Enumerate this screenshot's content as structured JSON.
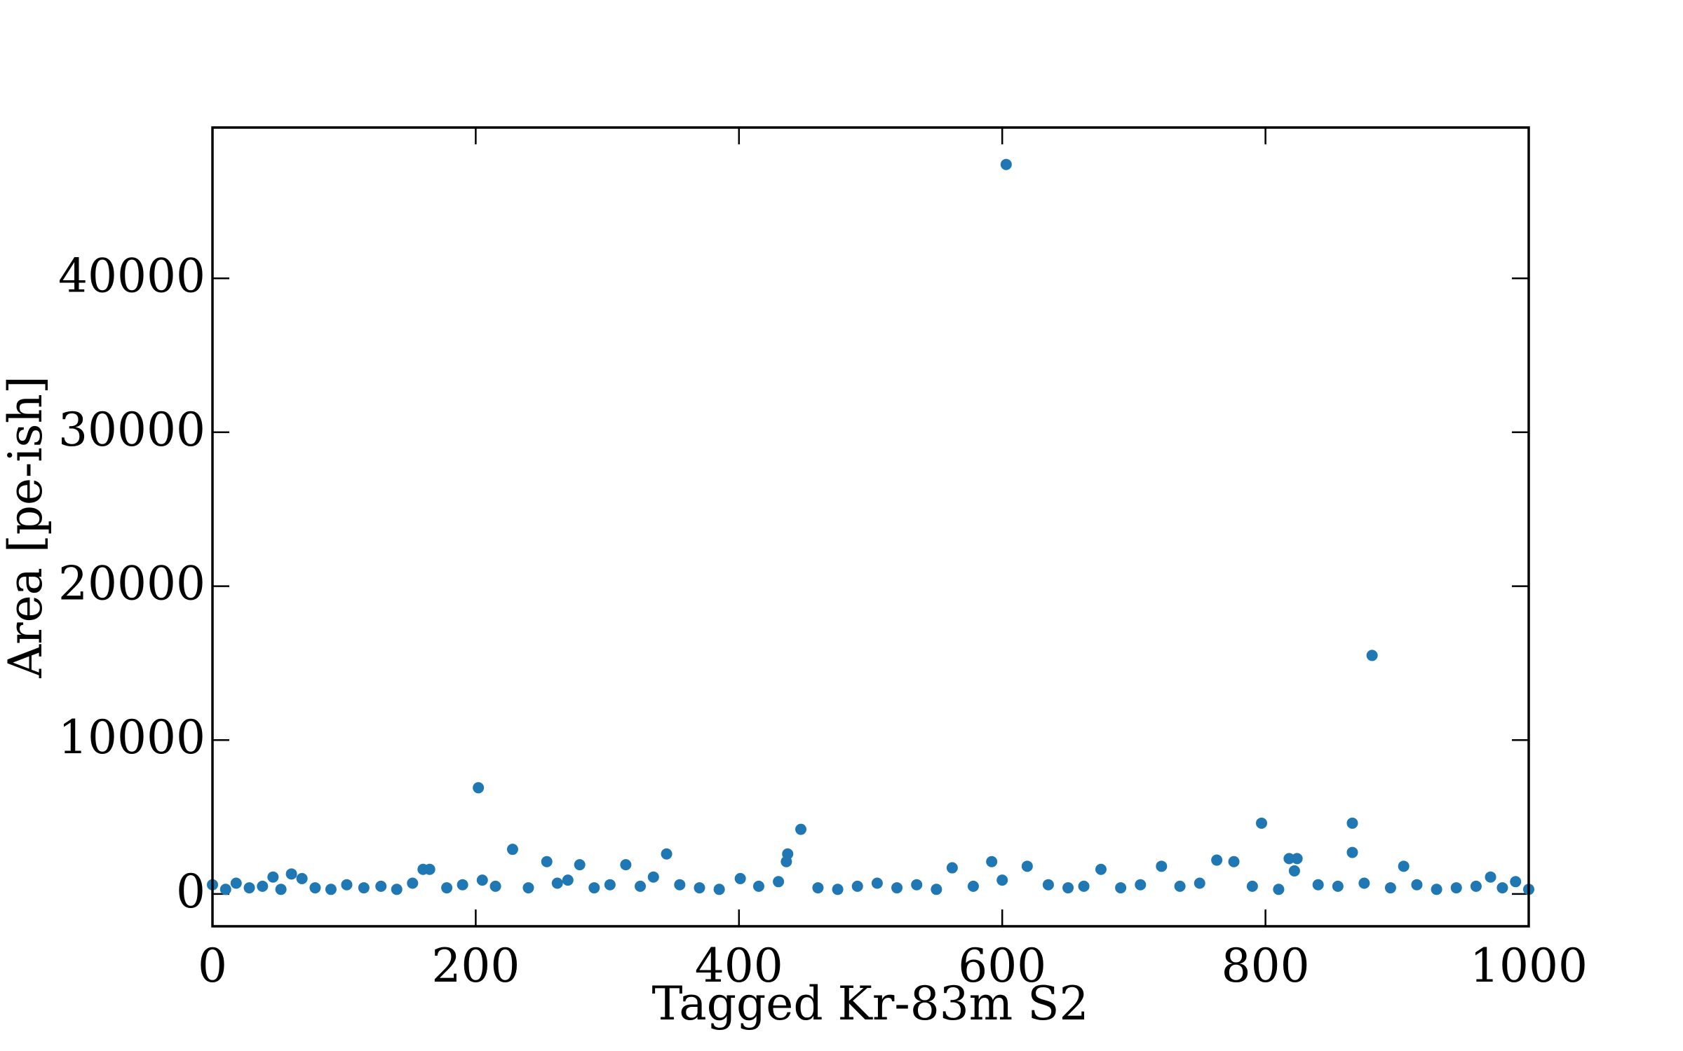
{
  "chart_data": {
    "type": "scatter",
    "xlabel": "Tagged Kr-83m S2",
    "ylabel": "Area [pe-ish]",
    "color": "#1f77b4",
    "xlim": [
      0,
      1000
    ],
    "xticks": [
      0,
      200,
      400,
      600,
      800,
      1000
    ],
    "ylim": [
      -2100,
      49800
    ],
    "yticks": [
      0,
      10000,
      20000,
      30000,
      40000
    ],
    "x": [
      0,
      10,
      18,
      28,
      38,
      46,
      52,
      60,
      68,
      78,
      90,
      102,
      115,
      128,
      140,
      152,
      160,
      165,
      178,
      190,
      202,
      205,
      215,
      228,
      240,
      254,
      262,
      270,
      279,
      290,
      302,
      314,
      325,
      335,
      345,
      355,
      370,
      385,
      401,
      415,
      430,
      436,
      437,
      447,
      460,
      475,
      490,
      505,
      520,
      535,
      550,
      562,
      578,
      592,
      600,
      603,
      619,
      635,
      650,
      662,
      675,
      690,
      705,
      721,
      735,
      750,
      763,
      776,
      790,
      797,
      810,
      818,
      822,
      824,
      840,
      855,
      866,
      866,
      875,
      881,
      895,
      905,
      915,
      930,
      945,
      960,
      971,
      980,
      990,
      1000
    ],
    "y": [
      600,
      300,
      700,
      400,
      500,
      1100,
      300,
      1300,
      1000,
      400,
      300,
      600,
      400,
      500,
      300,
      700,
      1600,
      1600,
      400,
      600,
      6900,
      900,
      500,
      2900,
      400,
      2100,
      700,
      900,
      1900,
      400,
      600,
      1900,
      500,
      1100,
      2600,
      600,
      400,
      300,
      1000,
      500,
      800,
      2100,
      2600,
      4200,
      400,
      300,
      500,
      700,
      400,
      600,
      300,
      1700,
      500,
      2100,
      900,
      47400,
      1800,
      600,
      400,
      500,
      1600,
      400,
      600,
      1800,
      500,
      700,
      2200,
      2100,
      500,
      4600,
      300,
      2300,
      1500,
      2300,
      600,
      500,
      4600,
      2700,
      700,
      15500,
      400,
      1800,
      600,
      300,
      400,
      500,
      1100,
      400,
      800,
      300
    ]
  }
}
